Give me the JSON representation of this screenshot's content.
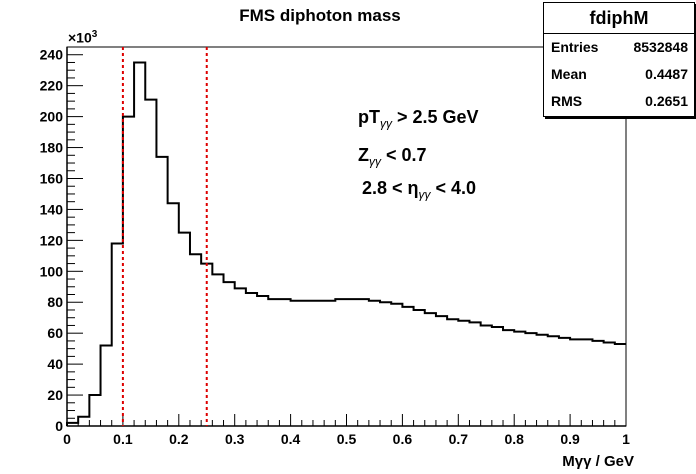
{
  "title": "FMS diphoton mass",
  "stats": {
    "name": "fdiphM",
    "rows": [
      {
        "label": "Entries",
        "value": "8532848"
      },
      {
        "label": "Mean",
        "value": "0.4487"
      },
      {
        "label": "RMS",
        "value": "0.2651"
      }
    ]
  },
  "annotations": {
    "line1_pre": "pT",
    "line1_sub": "γγ",
    "line1_post": " > 2.5 GeV",
    "line2_pre": "Z",
    "line2_sub": "γγ",
    "line2_post": " < 0.7",
    "line3_pre": "2.8 < η",
    "line3_sub": "γγ",
    "line3_post": " < 4.0"
  },
  "y_exponent_base": "×10",
  "y_exponent_power": "3",
  "chart_data": {
    "type": "histogram",
    "xlabel": "Mγγ / GeV",
    "ylabel": "",
    "xlim": [
      0,
      1
    ],
    "ylim": [
      0,
      245
    ],
    "y_units": "×10^3 entries",
    "bin_width": 0.02,
    "bin_edges_start": 0,
    "values": [
      2,
      6,
      20,
      52,
      118,
      200,
      235,
      211,
      174,
      144,
      125,
      111,
      105,
      98,
      93,
      89,
      86,
      84,
      82,
      82,
      81,
      81,
      81,
      81,
      82,
      82,
      82,
      81,
      80,
      79,
      77,
      75,
      73,
      71,
      69,
      68,
      67,
      65,
      64,
      62,
      61,
      60,
      59,
      58,
      57,
      56,
      56,
      55,
      54,
      53
    ],
    "x_ticks": [
      "0",
      "0.1",
      "0.2",
      "0.3",
      "0.4",
      "0.5",
      "0.6",
      "0.7",
      "0.8",
      "0.9",
      "1"
    ],
    "y_ticks": [
      "0",
      "20",
      "40",
      "60",
      "80",
      "100",
      "120",
      "140",
      "160",
      "180",
      "200",
      "220",
      "240"
    ],
    "cut_lines": [
      0.1,
      0.25
    ],
    "cut_line_color": "#dd0000",
    "line_color": "#000000"
  }
}
